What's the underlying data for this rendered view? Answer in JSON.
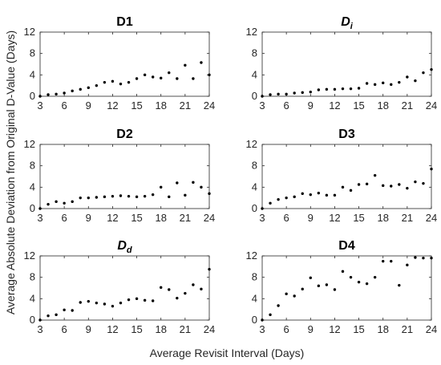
{
  "figure": {
    "ylabel": "Average Absolute Deviation from Original D-Value (Days)",
    "xlabel": "Average Revisit Interval (Days)"
  },
  "chart_data": [
    {
      "type": "scatter",
      "title": "D1",
      "title_main": "D1",
      "title_sub": "",
      "xlim": [
        3,
        24
      ],
      "ylim": [
        0,
        12
      ],
      "xticks": [
        3,
        6,
        9,
        12,
        15,
        18,
        21,
        24
      ],
      "yticks": [
        0,
        4,
        8,
        12
      ],
      "grid": false,
      "marker_color": "#000000",
      "x": [
        3,
        4,
        5,
        6,
        7,
        8,
        9,
        10,
        11,
        12,
        13,
        14,
        15,
        16,
        17,
        18,
        19,
        20,
        21,
        22,
        23,
        24
      ],
      "y": [
        0,
        0.3,
        0.4,
        0.6,
        1.0,
        1.3,
        1.6,
        2.0,
        2.6,
        2.8,
        2.3,
        2.6,
        3.3,
        4.0,
        3.6,
        3.4,
        4.4,
        3.3,
        5.8,
        3.3,
        6.3,
        4.0
      ]
    },
    {
      "type": "scatter",
      "title": "Di",
      "title_main": "D",
      "title_sub": "i",
      "xlim": [
        3,
        24
      ],
      "ylim": [
        0,
        12
      ],
      "xticks": [
        3,
        6,
        9,
        12,
        15,
        18,
        21,
        24
      ],
      "yticks": [
        0,
        4,
        8,
        12
      ],
      "grid": false,
      "marker_color": "#000000",
      "x": [
        3,
        4,
        5,
        6,
        7,
        8,
        9,
        10,
        11,
        12,
        13,
        14,
        15,
        16,
        17,
        18,
        19,
        20,
        21,
        22,
        23,
        24
      ],
      "y": [
        0,
        0.3,
        0.4,
        0.4,
        0.6,
        0.7,
        0.8,
        1.2,
        1.3,
        1.3,
        1.4,
        1.4,
        1.5,
        2.4,
        2.2,
        2.5,
        2.2,
        2.6,
        3.6,
        2.9,
        4.4,
        5.0
      ]
    },
    {
      "type": "scatter",
      "title": "D2",
      "title_main": "D2",
      "title_sub": "",
      "xlim": [
        3,
        24
      ],
      "ylim": [
        0,
        12
      ],
      "xticks": [
        3,
        6,
        9,
        12,
        15,
        18,
        21,
        24
      ],
      "yticks": [
        0,
        4,
        8,
        12
      ],
      "grid": false,
      "marker_color": "#000000",
      "x": [
        3,
        4,
        5,
        6,
        7,
        8,
        9,
        10,
        11,
        12,
        13,
        14,
        15,
        16,
        17,
        18,
        19,
        20,
        21,
        22,
        23,
        24
      ],
      "y": [
        0,
        0.8,
        1.3,
        1.0,
        1.3,
        2.0,
        2.0,
        2.1,
        2.2,
        2.3,
        2.4,
        2.3,
        2.2,
        2.3,
        2.6,
        4.0,
        2.2,
        4.8,
        2.5,
        4.9,
        4.0,
        2.8
      ]
    },
    {
      "type": "scatter",
      "title": "D3",
      "title_main": "D3",
      "title_sub": "",
      "xlim": [
        3,
        24
      ],
      "ylim": [
        0,
        12
      ],
      "xticks": [
        3,
        6,
        9,
        12,
        15,
        18,
        21,
        24
      ],
      "yticks": [
        0,
        4,
        8,
        12
      ],
      "grid": false,
      "marker_color": "#000000",
      "x": [
        3,
        4,
        5,
        6,
        7,
        8,
        9,
        10,
        11,
        12,
        13,
        14,
        15,
        16,
        17,
        18,
        19,
        20,
        21,
        22,
        23,
        24
      ],
      "y": [
        0,
        1.0,
        1.7,
        2.0,
        2.2,
        2.8,
        2.6,
        2.9,
        2.5,
        2.5,
        4.0,
        3.4,
        4.5,
        4.6,
        6.2,
        4.3,
        4.2,
        4.5,
        3.8,
        5.0,
        4.7,
        7.4
      ]
    },
    {
      "type": "scatter",
      "title": "Dd",
      "title_main": "D",
      "title_sub": "d",
      "xlim": [
        3,
        24
      ],
      "ylim": [
        0,
        12
      ],
      "xticks": [
        3,
        6,
        9,
        12,
        15,
        18,
        21,
        24
      ],
      "yticks": [
        0,
        4,
        8,
        12
      ],
      "grid": false,
      "marker_color": "#000000",
      "x": [
        3,
        4,
        5,
        6,
        7,
        8,
        9,
        10,
        11,
        12,
        13,
        14,
        15,
        16,
        17,
        18,
        19,
        20,
        21,
        22,
        23,
        24
      ],
      "y": [
        0,
        0.8,
        1.0,
        1.9,
        1.8,
        3.3,
        3.5,
        3.2,
        3.0,
        2.6,
        3.2,
        3.8,
        4.0,
        3.7,
        3.6,
        6.1,
        5.7,
        4.1,
        5.0,
        6.6,
        5.8,
        9.5
      ]
    },
    {
      "type": "scatter",
      "title": "D4",
      "title_main": "D4",
      "title_sub": "",
      "xlim": [
        3,
        24
      ],
      "ylim": [
        0,
        12
      ],
      "xticks": [
        3,
        6,
        9,
        12,
        15,
        18,
        21,
        24
      ],
      "yticks": [
        0,
        4,
        8,
        12
      ],
      "grid": false,
      "marker_color": "#000000",
      "x": [
        3,
        4,
        5,
        6,
        7,
        8,
        9,
        10,
        11,
        12,
        13,
        14,
        15,
        16,
        17,
        18,
        19,
        20,
        21,
        22,
        23,
        24
      ],
      "y": [
        0,
        1.0,
        2.7,
        4.9,
        4.5,
        5.8,
        7.9,
        6.4,
        6.6,
        5.7,
        9.1,
        8.0,
        7.1,
        6.8,
        8.0,
        11.0,
        11.0,
        6.5,
        10.3,
        11.7,
        11.6,
        11.6
      ]
    }
  ]
}
